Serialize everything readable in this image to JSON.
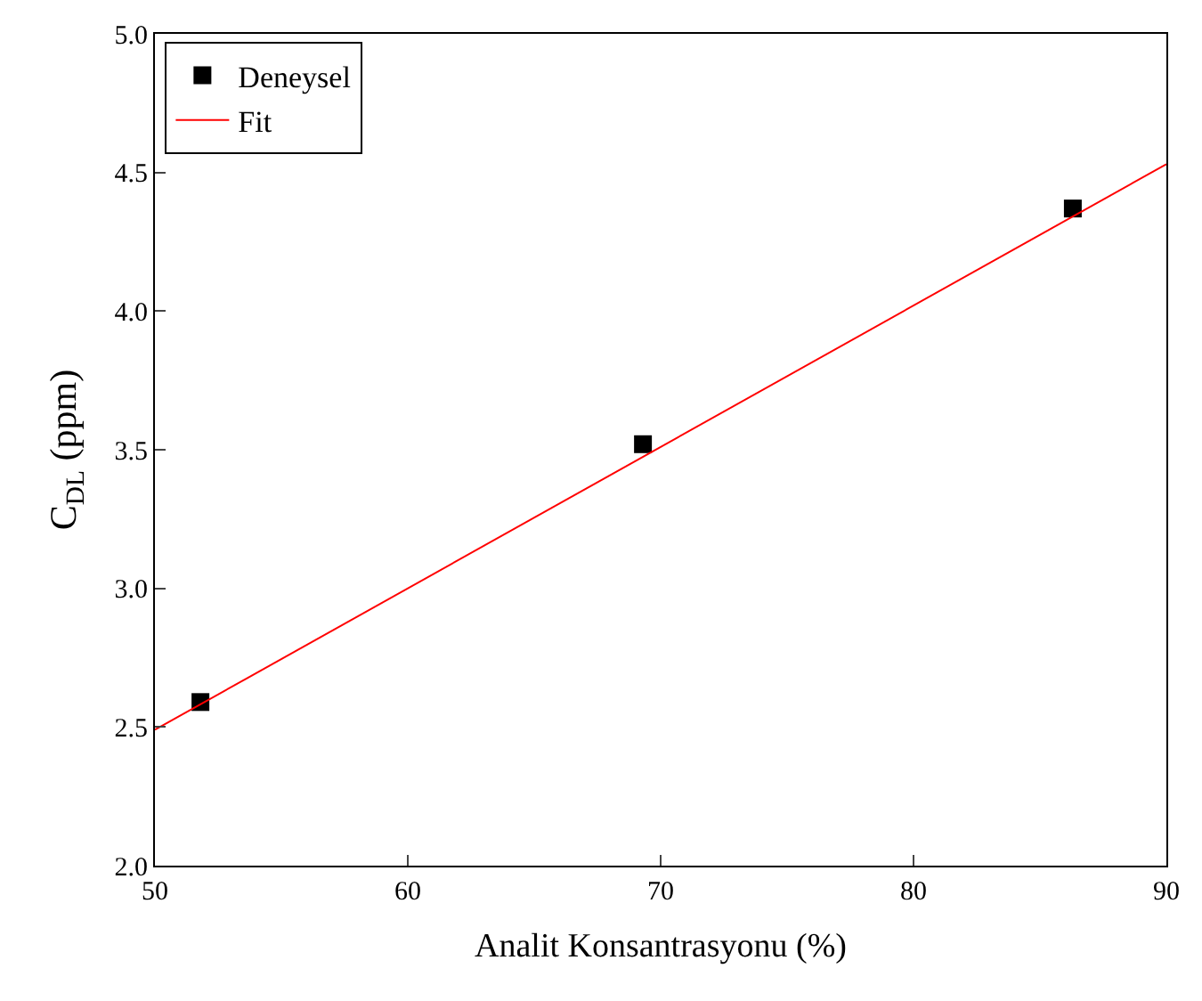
{
  "chart_data": {
    "type": "scatter",
    "xlabel": "Analit Konsantrasyonu (%)",
    "ylabel": "C$_{DL}$ (ppm)",
    "xlim": [
      50,
      90
    ],
    "xticks": [
      50,
      60,
      70,
      80,
      90
    ],
    "ylim": [
      2.0,
      5.0
    ],
    "yticks": [
      {
        "value": 2.0,
        "label": "2.0"
      },
      {
        "value": 2.5,
        "label": "2.5"
      },
      {
        "value": 3.0,
        "label": "3.0"
      },
      {
        "value": 3.5,
        "label": "3.5"
      },
      {
        "value": 4.0,
        "label": "4.0"
      },
      {
        "value": 4.5,
        "label": "4.5"
      },
      {
        "value": 5.0,
        "label": "5.0"
      }
    ],
    "legend": "top left",
    "series": [
      {
        "name": "Deneysel",
        "marker": "square",
        "color": "#000000",
        "x": [
          51.8,
          69.3,
          86.3
        ],
        "values": [
          2.59,
          3.52,
          4.37
        ]
      },
      {
        "name": "Fit",
        "type": "line",
        "marker": "none",
        "line_style": "solid",
        "color": "#ff0000",
        "x": [
          50,
          90
        ],
        "values": [
          2.49,
          4.53
        ]
      }
    ]
  }
}
